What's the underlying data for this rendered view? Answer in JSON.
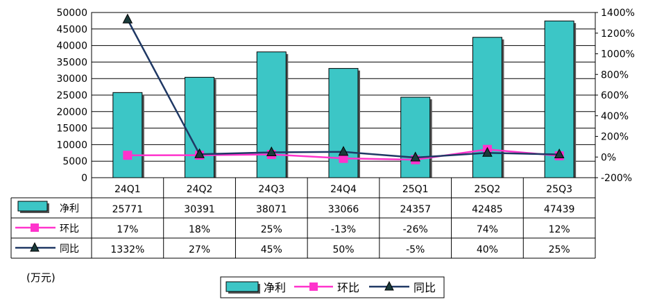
{
  "colors": {
    "bar": "#3cc6c6",
    "hb": "#ff33cc",
    "tb": "#1f3864",
    "grid": "#000000"
  },
  "chart_data": {
    "type": "bar",
    "categories": [
      "24Q1",
      "24Q2",
      "24Q3",
      "24Q4",
      "25Q1",
      "25Q2",
      "25Q3"
    ],
    "unit_label": "(万元)",
    "ylim_left": [
      0,
      50000
    ],
    "yticks_left": [
      "0",
      "5000",
      "10000",
      "15000",
      "20000",
      "25000",
      "30000",
      "35000",
      "40000",
      "45000",
      "50000"
    ],
    "ylim_right": [
      -200,
      1400
    ],
    "yticks_right": [
      "-200%",
      "0%",
      "200%",
      "400%",
      "600%",
      "800%",
      "1000%",
      "1200%",
      "1400%"
    ],
    "grid": true,
    "legend_position": "bottom",
    "series": [
      {
        "name": "净利",
        "kind": "bar",
        "axis": "left",
        "values": [
          25771,
          30391,
          38071,
          33066,
          24357,
          42485,
          47439
        ],
        "labels": [
          "25771",
          "30391",
          "38071",
          "33066",
          "24357",
          "42485",
          "47439"
        ]
      },
      {
        "name": "环比",
        "kind": "line",
        "marker": "square",
        "axis": "right",
        "values": [
          17,
          18,
          25,
          -13,
          -26,
          74,
          12
        ],
        "labels": [
          "17%",
          "18%",
          "25%",
          "-13%",
          "-26%",
          "74%",
          "12%"
        ]
      },
      {
        "name": "同比",
        "kind": "line",
        "marker": "triangle",
        "axis": "right",
        "values": [
          1332,
          27,
          45,
          50,
          -5,
          40,
          25
        ],
        "labels": [
          "1332%",
          "27%",
          "45%",
          "50%",
          "-5%",
          "40%",
          "25%"
        ]
      }
    ]
  }
}
